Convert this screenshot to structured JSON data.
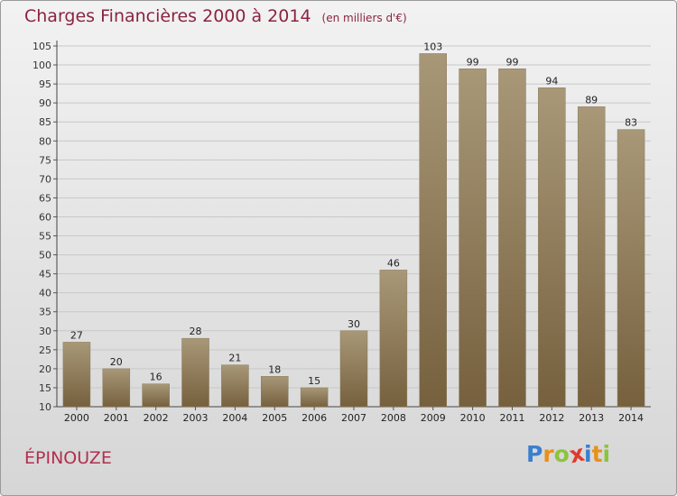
{
  "title": "Charges Financières 2000 à 2014",
  "subtitle": "(en milliers d'€)",
  "place": "ÉPINOUZE",
  "logo": {
    "text": "Proxiti",
    "letters": [
      {
        "ch": "P",
        "color": "#3a7fd0"
      },
      {
        "ch": "r",
        "color": "#e8901c"
      },
      {
        "ch": "o",
        "color": "#8cc43c"
      },
      {
        "ch": "x",
        "color": "#e03a2c"
      },
      {
        "ch": "i",
        "color": "#3a7fd0"
      },
      {
        "ch": "t",
        "color": "#e8901c"
      },
      {
        "ch": "i",
        "color": "#8cc43c"
      }
    ]
  },
  "colors": {
    "bar_top": "#a89878",
    "bar_bottom": "#76603e",
    "title": "#8a2440",
    "place": "#b0304e",
    "grid": "#c8c8c8"
  },
  "chart_data": {
    "type": "bar",
    "title": "Charges Financières 2000 à 2014",
    "subtitle": "(en milliers d'€)",
    "categories": [
      "2000",
      "2001",
      "2002",
      "2003",
      "2004",
      "2005",
      "2006",
      "2007",
      "2008",
      "2009",
      "2010",
      "2011",
      "2012",
      "2013",
      "2014"
    ],
    "values": [
      27,
      20,
      16,
      28,
      21,
      18,
      15,
      30,
      46,
      103,
      99,
      99,
      94,
      89,
      83
    ],
    "ylim": [
      10,
      105
    ],
    "yticks": [
      10,
      15,
      20,
      25,
      30,
      35,
      40,
      45,
      50,
      55,
      60,
      65,
      70,
      75,
      80,
      85,
      90,
      95,
      100,
      105
    ],
    "grid": true,
    "legend": "none"
  }
}
